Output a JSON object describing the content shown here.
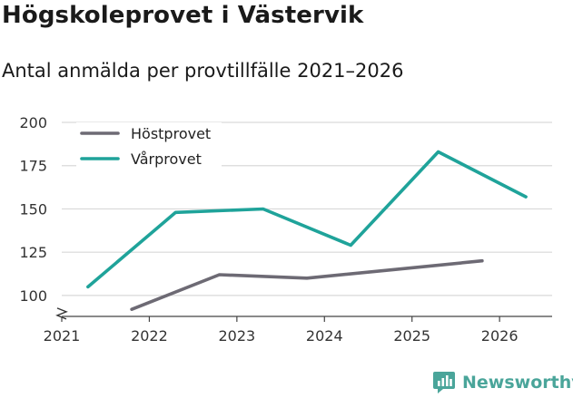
{
  "title": "Högskoleprovet i Västervik",
  "subtitle": "Antal anmälda per provtillfälle 2021–2026",
  "brand": {
    "name": "Newsworthy",
    "icon": "newsworthy-logo-icon"
  },
  "colors": {
    "host": "#6d6a74",
    "var": "#1fa39a",
    "grid": "#d9d9d9",
    "brand": "#4aa59a"
  },
  "chart_data": {
    "type": "line",
    "title": "Antal anmälda per provtillfälle 2021–2026",
    "xlabel": "",
    "ylabel": "",
    "xlim": [
      2021,
      2026.6
    ],
    "ylim": [
      90,
      200
    ],
    "ylim_display_from": 100,
    "axis_break": true,
    "grid": true,
    "legend_position": "top-left",
    "x_ticks": [
      2021,
      2022,
      2023,
      2024,
      2025,
      2026
    ],
    "y_ticks": [
      200,
      175,
      150,
      125,
      100
    ],
    "series": [
      {
        "name": "Höstprovet",
        "color": "#6d6a74",
        "x": [
          2021.8,
          2022.8,
          2023.8,
          2024.8,
          2025.8
        ],
        "values": [
          92,
          112,
          110,
          115,
          120
        ]
      },
      {
        "name": "Vårprovet",
        "color": "#1fa39a",
        "x": [
          2021.3,
          2022.3,
          2023.3,
          2024.3,
          2025.3,
          2026.3
        ],
        "values": [
          105,
          148,
          150,
          129,
          183,
          157
        ]
      }
    ]
  }
}
